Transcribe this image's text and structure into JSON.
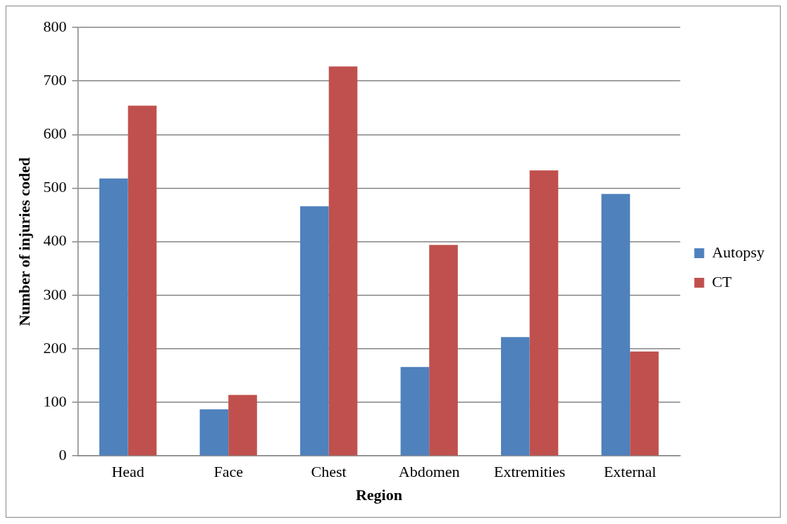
{
  "chart_data": {
    "type": "bar",
    "xlabel": "Region",
    "ylabel": "Number of injuries coded",
    "categories": [
      "Head",
      "Face",
      "Chest",
      "Abdomen",
      "Extremities",
      "External"
    ],
    "series": [
      {
        "name": "Autopsy",
        "color": "#4f81bd",
        "values": [
          518,
          87,
          466,
          166,
          222,
          489
        ]
      },
      {
        "name": "CT",
        "color": "#c0504d",
        "values": [
          654,
          114,
          727,
          394,
          533,
          195
        ]
      }
    ],
    "ylim": [
      0,
      800
    ],
    "yticks": [
      0,
      100,
      200,
      300,
      400,
      500,
      600,
      700,
      800
    ],
    "grid": "y",
    "legend": "right"
  }
}
